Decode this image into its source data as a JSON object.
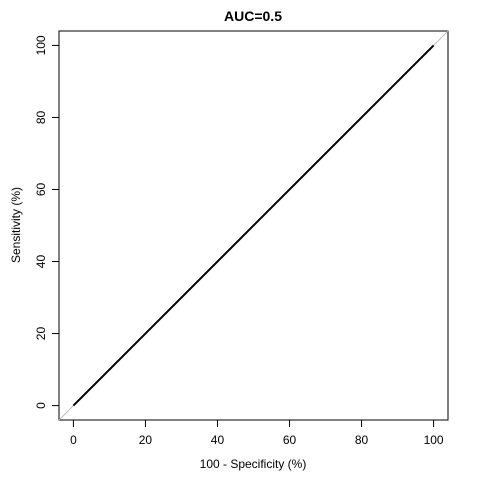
{
  "chart_data": {
    "type": "line",
    "title": "AUC=0.5",
    "xlabel": "100 - Specificity (%)",
    "ylabel": "Sensitivity (%)",
    "xlim": [
      -4,
      104
    ],
    "ylim": [
      -4,
      104
    ],
    "x_ticks": [
      0,
      20,
      40,
      60,
      80,
      100
    ],
    "y_ticks": [
      0,
      20,
      40,
      60,
      80,
      100
    ],
    "grid": false,
    "series": [
      {
        "values": [
          [
            0,
            0
          ],
          [
            100,
            100
          ]
        ],
        "color": "#000000"
      }
    ],
    "reference_line": {
      "from": [
        -4,
        -4
      ],
      "to": [
        104,
        104
      ],
      "color": "#bebebe"
    }
  }
}
